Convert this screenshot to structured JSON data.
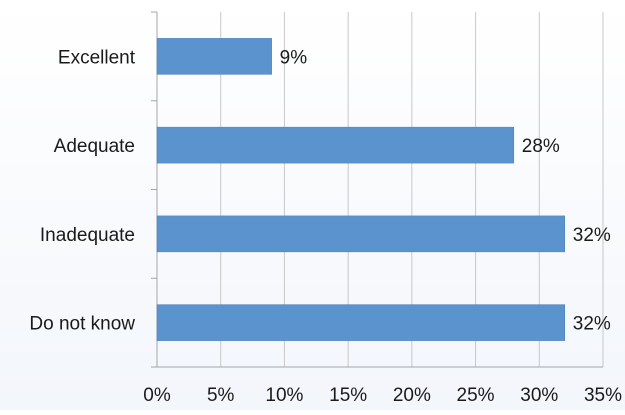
{
  "chart_data": {
    "type": "bar",
    "orientation": "horizontal",
    "categories": [
      "Excellent",
      "Adequate",
      "Inadequate",
      "Do not know"
    ],
    "values": [
      9,
      28,
      32,
      32
    ],
    "data_labels": [
      "9%",
      "28%",
      "32%",
      "32%"
    ],
    "xlim": [
      0,
      35
    ],
    "x_ticks": [
      0,
      5,
      10,
      15,
      20,
      25,
      30,
      35
    ],
    "x_tick_labels": [
      "0%",
      "5%",
      "10%",
      "15%",
      "20%",
      "25%",
      "30%",
      "35%"
    ],
    "title": "",
    "xlabel": "",
    "ylabel": "",
    "grid": "vertical",
    "legend": "none",
    "colors": {
      "bar": "#5b93cf",
      "bar_edge": "#4a7fb9",
      "grid": "#c8c8c8",
      "axis": "#a6a6a6",
      "text": "#1a1a1a"
    }
  }
}
